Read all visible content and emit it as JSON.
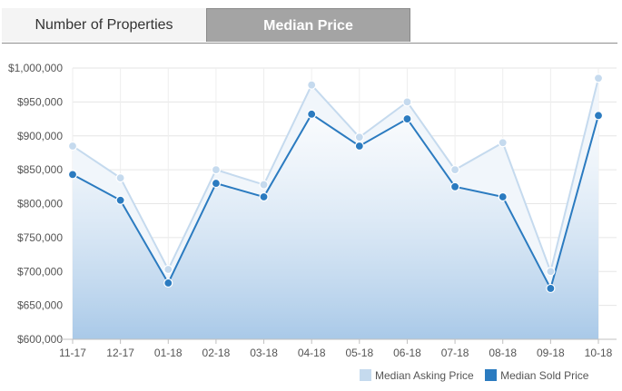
{
  "tabs": {
    "number_of_properties": "Number of Properties",
    "median_price": "Median Price"
  },
  "chart_data": {
    "type": "area",
    "title": "",
    "xlabel": "",
    "ylabel": "",
    "categories": [
      "11-17",
      "12-17",
      "01-18",
      "02-18",
      "03-18",
      "04-18",
      "05-18",
      "06-18",
      "07-18",
      "08-18",
      "09-18",
      "10-18"
    ],
    "ylim": [
      600000,
      1000000
    ],
    "yticks": [
      600000,
      650000,
      700000,
      750000,
      800000,
      850000,
      900000,
      950000,
      1000000
    ],
    "ytick_labels": [
      "$600,000",
      "$650,000",
      "$700,000",
      "$750,000",
      "$800,000",
      "$850,000",
      "$900,000",
      "$950,000",
      "$1,000,000"
    ],
    "grid": true,
    "legend_position": "bottom-right",
    "series": [
      {
        "name": "Median Asking Price",
        "color": "#c5daee",
        "values": [
          885000,
          838000,
          703000,
          850000,
          828000,
          975000,
          898000,
          950000,
          850000,
          890000,
          700000,
          985000
        ]
      },
      {
        "name": "Median Sold Price",
        "color": "#2b7bc0",
        "values": [
          843000,
          805000,
          683000,
          830000,
          810000,
          932000,
          885000,
          925000,
          825000,
          810000,
          675000,
          930000
        ]
      }
    ]
  }
}
